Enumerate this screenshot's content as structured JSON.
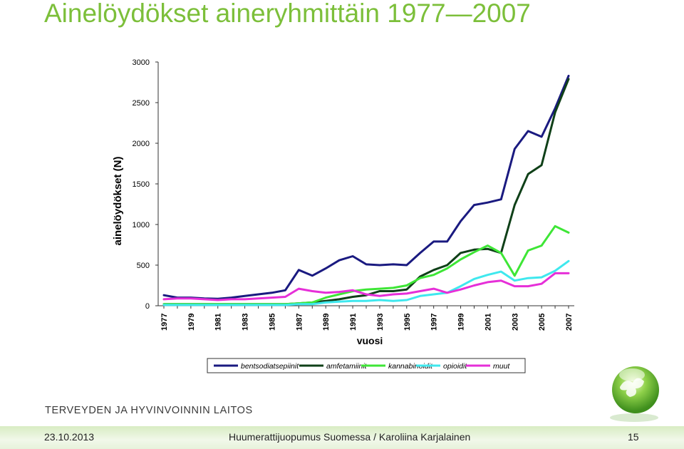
{
  "slide": {
    "title": "Ainelöydökset aineryhmittäin 1977—2007",
    "org_name": "TERVEYDEN JA HYVINVOINNIN LAITOS",
    "footer": {
      "date": "23.10.2013",
      "caption": "Huumerattijuopumus Suomessa / Karoliina Karjalainen",
      "page": "15"
    }
  },
  "chart_data": {
    "type": "line",
    "xlabel": "vuosi",
    "ylabel": "ainelöydökset (N)",
    "x": [
      1977,
      1978,
      1979,
      1980,
      1981,
      1982,
      1983,
      1984,
      1985,
      1986,
      1987,
      1988,
      1989,
      1990,
      1991,
      1992,
      1993,
      1994,
      1995,
      1996,
      1997,
      1998,
      1999,
      2000,
      2001,
      2002,
      2003,
      2004,
      2005,
      2006,
      2007
    ],
    "xticks": [
      "1977",
      "1979",
      "1981",
      "1983",
      "1985",
      "1987",
      "1989",
      "1991",
      "1993",
      "1995",
      "1997",
      "1999",
      "2001",
      "2003",
      "2005",
      "2007"
    ],
    "yticks": [
      "0",
      "500",
      "1000",
      "1500",
      "2000",
      "2500",
      "3000"
    ],
    "ylim": [
      0,
      3000
    ],
    "grid": false,
    "legend_position": "bottom",
    "series": [
      {
        "name": "bentsodiatsepiinit",
        "color": "#1a1a80",
        "values": [
          130,
          100,
          100,
          90,
          85,
          100,
          120,
          140,
          160,
          190,
          440,
          370,
          460,
          560,
          610,
          510,
          500,
          510,
          500,
          650,
          790,
          790,
          1040,
          1240,
          1270,
          1310,
          1930,
          2150,
          2080,
          2430,
          2830
        ]
      },
      {
        "name": "amfetamiinit",
        "color": "#0f4018",
        "values": [
          20,
          20,
          20,
          20,
          20,
          20,
          20,
          20,
          20,
          20,
          30,
          40,
          60,
          80,
          110,
          130,
          180,
          180,
          200,
          360,
          440,
          500,
          650,
          690,
          700,
          650,
          1240,
          1620,
          1730,
          2380,
          2790
        ]
      },
      {
        "name": "kannabinoidit",
        "color": "#3ee636",
        "values": [
          20,
          20,
          20,
          20,
          20,
          20,
          20,
          20,
          20,
          20,
          30,
          40,
          100,
          140,
          180,
          200,
          210,
          220,
          250,
          340,
          380,
          460,
          570,
          660,
          740,
          650,
          370,
          680,
          740,
          980,
          900
        ]
      },
      {
        "name": "opioidit",
        "color": "#3fe8ee",
        "values": [
          10,
          10,
          10,
          10,
          10,
          10,
          10,
          10,
          10,
          10,
          20,
          20,
          40,
          50,
          60,
          60,
          70,
          60,
          70,
          120,
          140,
          160,
          240,
          330,
          380,
          420,
          310,
          340,
          350,
          430,
          550
        ]
      },
      {
        "name": "muut",
        "color": "#e62fd8",
        "values": [
          80,
          90,
          90,
          80,
          70,
          80,
          80,
          90,
          100,
          110,
          210,
          180,
          160,
          170,
          190,
          140,
          120,
          140,
          150,
          180,
          210,
          160,
          200,
          250,
          290,
          310,
          240,
          240,
          270,
          400,
          400
        ]
      }
    ]
  }
}
